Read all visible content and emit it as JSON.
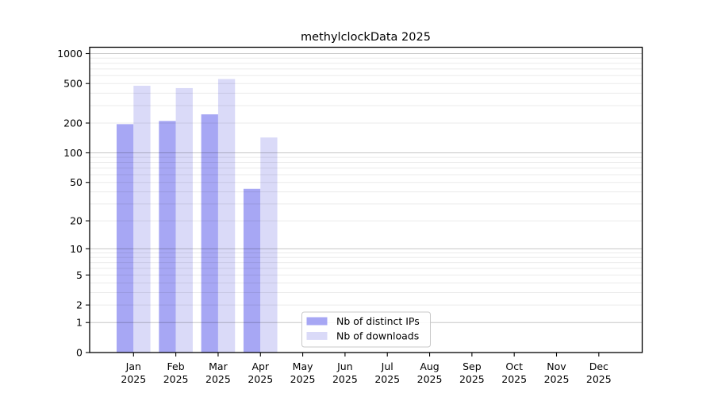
{
  "title": "methylclockData 2025",
  "colors": {
    "background": "#ffffff",
    "axis": "#000000",
    "text": "#000000",
    "grid_minor": "rgba(0,0,0,0.08)",
    "grid_major": "rgba(0,0,0,0.22)",
    "legend_border": "#c9c9c9",
    "legend_background": "#ffffff",
    "series_ips": "#a7a7f4",
    "series_downloads": "#dadaf8"
  },
  "legend": {
    "items": [
      {
        "label": "Nb of distinct IPs",
        "color": "#a7a7f4"
      },
      {
        "label": "Nb of downloads",
        "color": "#dadaf8"
      }
    ]
  },
  "chart_data": {
    "type": "bar",
    "title": "methylclockData 2025",
    "categories": [
      "Jan 2025",
      "Feb 2025",
      "Mar 2025",
      "Apr 2025",
      "May 2025",
      "Jun 2025",
      "Jul 2025",
      "Aug 2025",
      "Sep 2025",
      "Oct 2025",
      "Nov 2025",
      "Dec 2025"
    ],
    "series": [
      {
        "name": "Nb of distinct IPs",
        "color": "#a7a7f4",
        "values": [
          195,
          210,
          245,
          43,
          0,
          0,
          0,
          0,
          0,
          0,
          0,
          0
        ]
      },
      {
        "name": "Nb of downloads",
        "color": "#dadaf8",
        "values": [
          475,
          450,
          555,
          143,
          0,
          0,
          0,
          0,
          0,
          0,
          0,
          0
        ]
      }
    ],
    "xlabel": "",
    "ylabel": "",
    "yscale": "log1p",
    "yticks": [
      0,
      1,
      2,
      5,
      10,
      20,
      50,
      100,
      200,
      500,
      1000
    ],
    "ylim": [
      0,
      1150
    ],
    "grid": "horizontal, minor + major (powers of 10), drawn over bars",
    "legend_position": "lower-center-inside"
  }
}
